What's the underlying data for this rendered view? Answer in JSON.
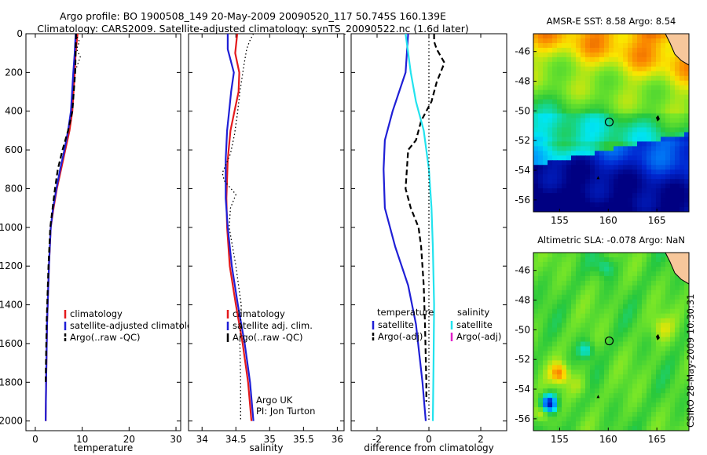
{
  "header": {
    "title_line1": "Argo profile: BO 1900508_149 20-May-2009 20090520_117 50.745S 160.139E",
    "title_line2": "Climatology: CARS2009. Satellite-adjusted climatology: synTS_20090522.nc (1.6d later)"
  },
  "credit": "CSIRO 28-May-2009 10:30:31",
  "colors": {
    "climatology": "#e41a1c",
    "satellite": "#1f1fd6",
    "argo": "#000000",
    "salinity_diff": "#22e3ee",
    "salinity_argo_adj": "#e020c8"
  },
  "chart_data": [
    {
      "type": "line",
      "id": "temperature",
      "xlabel": "temperature",
      "ylabel": "",
      "xlim": [
        -2,
        31
      ],
      "ylim": [
        2050,
        0
      ],
      "yreversed": true,
      "xticks": [
        0,
        10,
        20,
        30
      ],
      "yticks": [
        0,
        200,
        400,
        600,
        800,
        1000,
        1200,
        1400,
        1600,
        1800,
        2000
      ],
      "legend": [
        "climatology",
        "satellite-adjusted climatology",
        "Argo(..raw -QC)"
      ],
      "series": [
        {
          "name": "climatology",
          "color": "#e41a1c",
          "dash": "solid",
          "x": [
            9.0,
            8.6,
            8.4,
            7.9,
            7.3,
            6.4,
            5.5,
            4.6,
            3.9,
            3.3,
            2.9,
            2.5,
            2.3,
            2.2
          ],
          "y": [
            0,
            100,
            200,
            400,
            500,
            600,
            700,
            800,
            900,
            1000,
            1200,
            1500,
            1800,
            2000
          ]
        },
        {
          "name": "satellite-adjusted climatology",
          "color": "#1f1fd6",
          "dash": "solid",
          "x": [
            8.6,
            8.4,
            8.1,
            7.6,
            7.0,
            6.2,
            5.3,
            4.5,
            3.8,
            3.3,
            2.9,
            2.5,
            2.3,
            2.2
          ],
          "y": [
            0,
            100,
            200,
            400,
            500,
            600,
            700,
            800,
            900,
            1000,
            1200,
            1500,
            1800,
            2000
          ]
        },
        {
          "name": "Argo(..raw -QC)",
          "color": "#000000",
          "dash": "dashed",
          "x": [
            8.7,
            8.6,
            8.5,
            7.9,
            7.0,
            5.8,
            4.8,
            4.2,
            3.7,
            3.2,
            2.8,
            2.4,
            2.2
          ],
          "y": [
            0,
            100,
            200,
            400,
            500,
            600,
            700,
            800,
            900,
            1000,
            1200,
            1500,
            1800
          ]
        },
        {
          "name": "",
          "color": "#000000",
          "dash": "dotted",
          "x": [
            8.6,
            9.4,
            8.8,
            9.6,
            9.0,
            8.4
          ],
          "y": [
            0,
            40,
            80,
            120,
            160,
            200
          ]
        }
      ]
    },
    {
      "type": "line",
      "id": "salinity",
      "xlabel": "salinity",
      "ylabel": "",
      "xlim": [
        33.8,
        36.1
      ],
      "ylim": [
        2050,
        0
      ],
      "yreversed": true,
      "xticks": [
        34,
        34.5,
        35,
        35.5,
        36
      ],
      "annotation": [
        "Argo UK",
        "PI: Jon Turton"
      ],
      "legend": [
        "climatology",
        "satellite adj. clim.",
        "Argo(..raw -QC)"
      ],
      "series": [
        {
          "name": "climatology",
          "color": "#e41a1c",
          "dash": "solid",
          "x": [
            34.52,
            34.49,
            34.55,
            34.54,
            34.48,
            34.42,
            34.38,
            34.36,
            34.37,
            34.41,
            34.5,
            34.6,
            34.68,
            34.73
          ],
          "y": [
            0,
            100,
            200,
            300,
            400,
            500,
            650,
            850,
            1000,
            1200,
            1400,
            1600,
            1800,
            2000
          ]
        },
        {
          "name": "satellite adj. clim.",
          "color": "#1f1fd6",
          "dash": "solid",
          "x": [
            34.38,
            34.38,
            34.47,
            34.43,
            34.4,
            34.37,
            34.35,
            34.35,
            34.38,
            34.44,
            34.53,
            34.63,
            34.71,
            34.76
          ],
          "y": [
            0,
            80,
            200,
            300,
            400,
            500,
            650,
            850,
            1000,
            1200,
            1400,
            1600,
            1800,
            2000
          ]
        },
        {
          "name": "Argo(..raw -QC)",
          "color": "#000000",
          "dash": "dotted",
          "x": [
            34.76,
            34.7,
            34.66,
            34.62,
            34.56,
            34.52,
            34.48,
            34.42,
            34.3,
            34.33,
            34.5,
            34.42,
            34.4,
            34.5,
            34.58,
            34.56,
            34.57,
            34.57
          ],
          "y": [
            0,
            40,
            80,
            160,
            300,
            420,
            520,
            620,
            720,
            760,
            830,
            900,
            1000,
            1200,
            1400,
            1600,
            1800,
            2000
          ]
        }
      ]
    },
    {
      "type": "line",
      "id": "difference",
      "xlabel": "difference from climatology",
      "ylabel": "",
      "xlim": [
        -3,
        3
      ],
      "ylim": [
        2050,
        0
      ],
      "yreversed": true,
      "xticks": [
        -2,
        0,
        2
      ],
      "legend_left": {
        "heading": "temperature",
        "items": [
          "satellite",
          "Argo(-adj)"
        ]
      },
      "legend_right": {
        "heading": "salinity",
        "items": [
          "satellite",
          "Argo(-adj)"
        ]
      },
      "series": [
        {
          "name": "satellite",
          "group": "temperature",
          "color": "#1f1fd6",
          "dash": "solid",
          "x": [
            -0.8,
            -0.9,
            -1.4,
            -1.7,
            -1.75,
            -1.7,
            -1.3,
            -0.8,
            -0.5,
            -0.25,
            -0.12
          ],
          "y": [
            0,
            200,
            400,
            550,
            700,
            900,
            1100,
            1300,
            1500,
            1800,
            2000
          ]
        },
        {
          "name": "Argo(-adj)",
          "group": "temperature",
          "color": "#000000",
          "dash": "dashed",
          "x": [
            0.2,
            0.2,
            0.3,
            0.6,
            0.3,
            0.1,
            -0.3,
            -0.5,
            -0.8,
            -0.9,
            -0.7,
            -0.4,
            -0.3,
            -0.2,
            -0.15,
            -0.1,
            -0.1
          ],
          "y": [
            0,
            40,
            80,
            150,
            250,
            350,
            450,
            550,
            600,
            800,
            900,
            1000,
            1100,
            1300,
            1500,
            1800,
            1900
          ]
        },
        {
          "name": "satellite",
          "group": "salinity",
          "color": "#22e3ee",
          "dash": "solid",
          "x": [
            -0.9,
            -0.8,
            -0.7,
            -0.5,
            -0.2,
            0.0,
            0.1,
            0.15,
            0.2,
            0.18,
            0.15
          ],
          "y": [
            0,
            100,
            200,
            350,
            500,
            700,
            900,
            1100,
            1400,
            1700,
            2000
          ]
        },
        {
          "name": "Argo(-adj)",
          "group": "salinity",
          "color": "#e020c8",
          "dash": "solid",
          "x": [],
          "y": []
        },
        {
          "name": "",
          "color": "#000000",
          "dash": "dotted",
          "x": [
            0,
            0
          ],
          "y": [
            0,
            2000
          ]
        }
      ]
    }
  ],
  "maps": [
    {
      "id": "sst",
      "type": "heatmap",
      "title": "AMSR-E SST: 8.58 Argo: 8.54",
      "xticks": [
        155,
        160,
        165
      ],
      "yticks": [
        -46,
        -48,
        -50,
        -52,
        -54,
        -56
      ],
      "xlim": [
        152.3,
        168.3
      ],
      "ylim": [
        -56.8,
        -44.8
      ],
      "marker": {
        "lon": 160.1,
        "lat": -50.75
      }
    },
    {
      "id": "sla",
      "type": "heatmap",
      "title": "Altimetric SLA: -0.078 Argo: NaN",
      "xticks": [
        155,
        160,
        165
      ],
      "yticks": [
        -46,
        -48,
        -50,
        -52,
        -54,
        -56
      ],
      "xlim": [
        152.3,
        168.3
      ],
      "ylim": [
        -56.8,
        -44.8
      ],
      "marker": {
        "lon": 160.1,
        "lat": -50.75
      }
    }
  ]
}
